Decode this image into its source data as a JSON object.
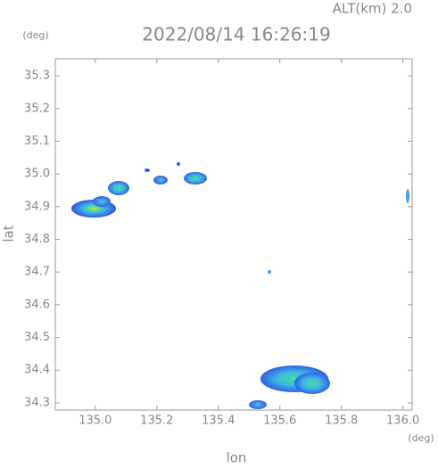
{
  "chart_data": {
    "type": "map",
    "title": "2022/08/14 16:26:19",
    "subtitle": "ALT(km) 2.0",
    "x_label": "lon",
    "y_label": "lat",
    "x_unit": "(deg)",
    "y_unit": "(deg)",
    "xlim": [
      134.87,
      136.03
    ],
    "ylim": [
      34.278,
      35.352
    ],
    "xticks": [
      {
        "value": 135.0,
        "label": "135.0"
      },
      135.2,
      135.4,
      135.6,
      135.8,
      {
        "value": 136.0,
        "label": "136.0"
      }
    ],
    "yticks": [
      35.3,
      35.2,
      35.1,
      {
        "value": 35.0,
        "label": "35.0"
      },
      34.9,
      34.8,
      34.7,
      34.6,
      34.5,
      34.4,
      34.3
    ]
  }
}
